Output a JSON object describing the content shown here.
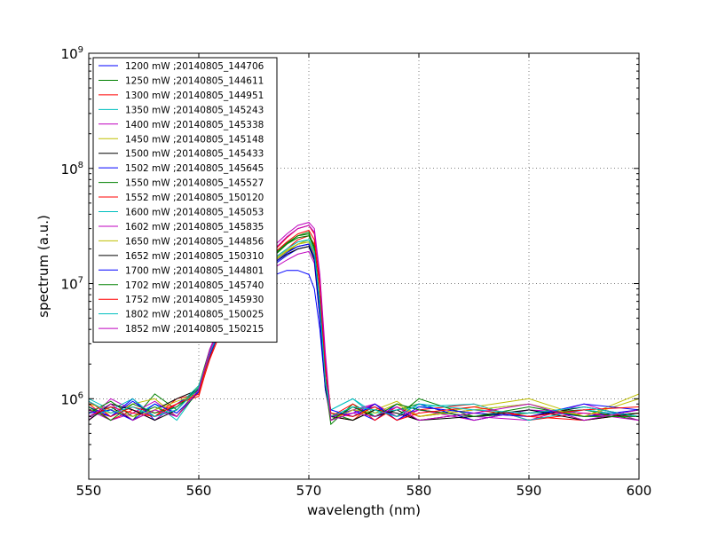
{
  "chart_data": {
    "type": "line",
    "title": "",
    "xlabel": "wavelength (nm)",
    "ylabel": "spectrum (a.u.)",
    "xlim": [
      550,
      600
    ],
    "ylim": [
      200000,
      1000000000
    ],
    "yscale": "log",
    "grid": true,
    "legend_position": "upper-left",
    "x_ticks": [
      {
        "value": 550,
        "label": "550"
      },
      {
        "value": 560,
        "label": "560"
      },
      {
        "value": 570,
        "label": "570"
      },
      {
        "value": 580,
        "label": "580"
      },
      {
        "value": 590,
        "label": "590"
      },
      {
        "value": 600,
        "label": "600"
      }
    ],
    "y_ticks": [
      {
        "value": 1000000,
        "base": "10",
        "exp": "6"
      },
      {
        "value": 10000000,
        "base": "10",
        "exp": "7"
      },
      {
        "value": 100000000,
        "base": "10",
        "exp": "8"
      },
      {
        "value": 1000000000,
        "base": "10",
        "exp": "9"
      }
    ],
    "x": [
      550,
      552,
      554,
      556,
      558,
      560,
      561,
      562,
      563,
      564,
      565,
      566,
      567,
      568,
      569,
      570,
      570.5,
      571,
      571.5,
      572,
      574,
      576,
      578,
      580,
      585,
      590,
      595,
      600
    ],
    "series": [
      {
        "name": "1200 mW ;20140805_144706",
        "color": "#0000ff",
        "values": [
          800000,
          700000,
          1000000,
          650000,
          900000,
          1200000,
          2500000,
          4000000,
          6000000,
          8000000,
          10000000,
          11000000,
          12000000,
          13000000,
          13000000,
          12000000,
          9000000,
          4000000,
          1200000,
          700000,
          800000,
          650000,
          900000,
          800000,
          700000,
          750000,
          800000,
          700000
        ]
      },
      {
        "name": "1250 mW ;20140805_144611",
        "color": "#008000",
        "values": [
          700000,
          900000,
          650000,
          1100000,
          800000,
          1300000,
          2700000,
          4200000,
          6500000,
          9000000,
          12000000,
          15000000,
          18000000,
          22000000,
          26000000,
          28000000,
          20000000,
          6000000,
          1300000,
          600000,
          900000,
          700000,
          800000,
          900000,
          650000,
          800000,
          700000,
          750000
        ]
      },
      {
        "name": "1300 mW ;20140805_144951",
        "color": "#ff0000",
        "values": [
          900000,
          650000,
          800000,
          700000,
          1000000,
          1100000,
          2200000,
          3800000,
          6000000,
          8500000,
          11000000,
          14000000,
          17000000,
          20000000,
          24000000,
          26000000,
          22000000,
          10000000,
          2000000,
          700000,
          650000,
          900000,
          700000,
          800000,
          900000,
          650000,
          750000,
          700000
        ]
      },
      {
        "name": "1350 mW ;20140805_145243",
        "color": "#00bfbf",
        "values": [
          1000000,
          800000,
          700000,
          900000,
          650000,
          1200000,
          2400000,
          4100000,
          6200000,
          8700000,
          11000000,
          13500000,
          16000000,
          19000000,
          22000000,
          23000000,
          18000000,
          6000000,
          1500000,
          800000,
          1000000,
          700000,
          850000,
          700000,
          800000,
          900000,
          650000,
          800000
        ]
      },
      {
        "name": "1400 mW ;20140805_145338",
        "color": "#bf00bf",
        "values": [
          650000,
          1000000,
          800000,
          650000,
          900000,
          1100000,
          2600000,
          4000000,
          6100000,
          8200000,
          10000000,
          12000000,
          14000000,
          16000000,
          18000000,
          19000000,
          15000000,
          5000000,
          1200000,
          650000,
          800000,
          900000,
          650000,
          800000,
          700000,
          650000,
          900000,
          650000
        ]
      },
      {
        "name": "1450 mW ;20140805_145148",
        "color": "#bfbf00",
        "values": [
          800000,
          750000,
          900000,
          1000000,
          700000,
          1300000,
          2500000,
          4300000,
          6400000,
          8800000,
          11500000,
          14000000,
          16500000,
          19500000,
          22000000,
          24000000,
          19000000,
          7000000,
          1400000,
          750000,
          700000,
          800000,
          950000,
          700000,
          850000,
          1000000,
          700000,
          1100000
        ]
      },
      {
        "name": "1500 mW ;20140805_145433",
        "color": "#000000",
        "values": [
          700000,
          850000,
          650000,
          800000,
          1000000,
          1200000,
          2300000,
          4100000,
          6300000,
          8600000,
          11000000,
          13500000,
          16000000,
          19000000,
          21000000,
          22000000,
          17000000,
          5500000,
          1300000,
          650000,
          850000,
          700000,
          800000,
          650000,
          750000,
          700000,
          850000,
          700000
        ]
      },
      {
        "name": "1502 mW ;20140805_145645",
        "color": "#0000ff",
        "values": [
          850000,
          700000,
          950000,
          700000,
          800000,
          1250000,
          2400000,
          4000000,
          6000000,
          8300000,
          10500000,
          13000000,
          15000000,
          17500000,
          20000000,
          21000000,
          16000000,
          5000000,
          1200000,
          700000,
          750000,
          850000,
          700000,
          900000,
          650000,
          800000,
          700000,
          800000
        ]
      },
      {
        "name": "1550 mW ;20140805_145527",
        "color": "#008000",
        "values": [
          750000,
          950000,
          700000,
          850000,
          700000,
          1150000,
          2600000,
          4400000,
          6700000,
          9200000,
          12000000,
          15000000,
          18500000,
          22500000,
          26000000,
          27000000,
          21000000,
          7000000,
          1500000,
          750000,
          650000,
          800000,
          700000,
          1000000,
          700000,
          750000,
          800000,
          650000
        ]
      },
      {
        "name": "1552 mW ;20140805_150120",
        "color": "#ff0000",
        "values": [
          950000,
          700000,
          850000,
          750000,
          900000,
          1050000,
          2300000,
          4200000,
          6500000,
          9000000,
          12000000,
          15500000,
          19000000,
          23000000,
          27000000,
          29000000,
          24000000,
          9000000,
          1800000,
          700000,
          900000,
          650000,
          850000,
          700000,
          800000,
          700000,
          650000,
          750000
        ]
      },
      {
        "name": "1600 mW ;20140805_145053",
        "color": "#00bfbf",
        "values": [
          700000,
          800000,
          1000000,
          700000,
          850000,
          1300000,
          2500000,
          4200000,
          6300000,
          8700000,
          11500000,
          14000000,
          17000000,
          20000000,
          23000000,
          24000000,
          19000000,
          6500000,
          1400000,
          800000,
          1000000,
          750000,
          800000,
          850000,
          900000,
          650000,
          800000,
          700000
        ]
      },
      {
        "name": "1602 mW ;20140805_145835",
        "color": "#bf00bf",
        "values": [
          800000,
          650000,
          750000,
          950000,
          700000,
          1200000,
          2700000,
          4500000,
          7000000,
          10000000,
          14000000,
          18000000,
          22000000,
          27000000,
          32000000,
          34000000,
          30000000,
          12000000,
          2500000,
          700000,
          750000,
          900000,
          700000,
          800000,
          650000,
          800000,
          750000,
          650000
        ]
      },
      {
        "name": "1650 mW ;20140805_144856",
        "color": "#bfbf00",
        "values": [
          900000,
          800000,
          700000,
          800000,
          950000,
          1100000,
          2400000,
          4100000,
          6200000,
          8600000,
          11000000,
          13500000,
          16000000,
          19000000,
          22000000,
          23000000,
          18000000,
          6000000,
          1300000,
          650000,
          800000,
          750000,
          900000,
          700000,
          800000,
          900000,
          700000,
          1000000
        ]
      },
      {
        "name": "1652 mW ;20140805_150310",
        "color": "#000000",
        "values": [
          650000,
          900000,
          800000,
          650000,
          800000,
          1250000,
          2500000,
          4000000,
          6100000,
          8400000,
          10800000,
          13000000,
          15500000,
          18000000,
          20000000,
          21000000,
          16000000,
          5200000,
          1250000,
          700000,
          650000,
          800000,
          750000,
          650000,
          700000,
          800000,
          650000,
          750000
        ]
      },
      {
        "name": "1700 mW ;20140805_144801",
        "color": "#0000ff",
        "values": [
          750000,
          800000,
          650000,
          900000,
          750000,
          1150000,
          2400000,
          4100000,
          6200000,
          8500000,
          11000000,
          13000000,
          15500000,
          18500000,
          21000000,
          22000000,
          17000000,
          5500000,
          1300000,
          800000,
          700000,
          900000,
          650000,
          850000,
          750000,
          700000,
          900000,
          800000
        ]
      },
      {
        "name": "1702 mW ;20140805_145740",
        "color": "#008000",
        "values": [
          850000,
          650000,
          900000,
          750000,
          850000,
          1200000,
          2600000,
          4300000,
          6600000,
          9100000,
          12000000,
          15000000,
          18000000,
          22000000,
          25000000,
          26000000,
          20000000,
          6800000,
          1400000,
          650000,
          850000,
          700000,
          900000,
          800000,
          700000,
          850000,
          700000,
          700000
        ]
      },
      {
        "name": "1752 mW ;20140805_145930",
        "color": "#ff0000",
        "values": [
          700000,
          850000,
          750000,
          700000,
          900000,
          1100000,
          2500000,
          4300000,
          6700000,
          9300000,
          12500000,
          16000000,
          20000000,
          25000000,
          30000000,
          32000000,
          27000000,
          11000000,
          2200000,
          750000,
          700000,
          850000,
          650000,
          750000,
          850000,
          700000,
          800000,
          850000
        ]
      },
      {
        "name": "1802 mW ;20140805_150025",
        "color": "#00bfbf",
        "values": [
          950000,
          750000,
          850000,
          700000,
          800000,
          1250000,
          2500000,
          4200000,
          6400000,
          8800000,
          11500000,
          14000000,
          17000000,
          20000000,
          23000000,
          24000000,
          19000000,
          6500000,
          1400000,
          700000,
          850000,
          800000,
          700000,
          900000,
          800000,
          750000,
          850000,
          700000
        ]
      },
      {
        "name": "1852 mW ;20140805_150215",
        "color": "#bf00bf",
        "values": [
          700000,
          900000,
          650000,
          800000,
          700000,
          1200000,
          2600000,
          4400000,
          6800000,
          9500000,
          13000000,
          16500000,
          20500000,
          25500000,
          30000000,
          32000000,
          28000000,
          11500000,
          2300000,
          650000,
          750000,
          700000,
          850000,
          650000,
          750000,
          900000,
          650000,
          800000
        ]
      }
    ]
  }
}
